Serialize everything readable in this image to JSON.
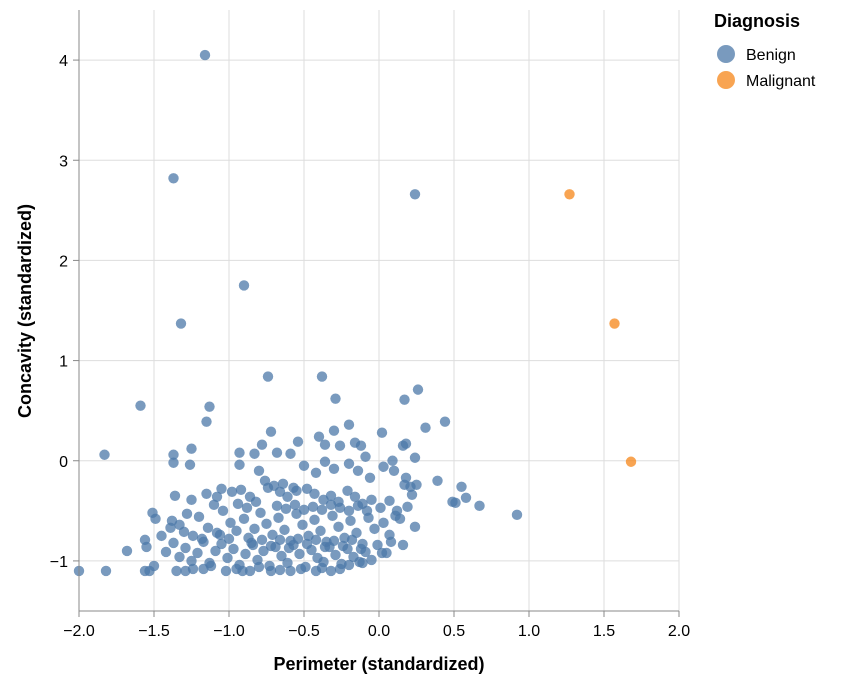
{
  "chart_data": {
    "type": "scatter",
    "xlabel": "Perimeter (standardized)",
    "ylabel": "Concavity (standardized)",
    "xlim": [
      -2.0,
      2.0
    ],
    "ylim": [
      -1.5,
      4.5
    ],
    "x_ticks": [
      -2.0,
      -1.5,
      -1.0,
      -0.5,
      0.0,
      0.5,
      1.0,
      1.5,
      2.0
    ],
    "x_tick_labels": [
      "−2.0",
      "−1.5",
      "−1.0",
      "−0.5",
      "0.0",
      "0.5",
      "1.0",
      "1.5",
      "2.0"
    ],
    "y_ticks": [
      -1,
      0,
      1,
      2,
      3,
      4
    ],
    "y_tick_labels": [
      "−1",
      "0",
      "1",
      "2",
      "3",
      "4"
    ],
    "grid": true,
    "legend": {
      "title": "Diagnosis",
      "position": "top-right"
    },
    "series": [
      {
        "name": "Benign",
        "color": "#4c78a8",
        "points": [
          [
            -1.16,
            4.05
          ],
          [
            -1.37,
            2.82
          ],
          [
            0.24,
            2.66
          ],
          [
            -0.9,
            1.75
          ],
          [
            -1.32,
            1.37
          ],
          [
            -0.74,
            0.84
          ],
          [
            -0.38,
            0.84
          ],
          [
            -0.29,
            0.62
          ],
          [
            0.26,
            0.71
          ],
          [
            0.17,
            0.61
          ],
          [
            -1.59,
            0.55
          ],
          [
            -1.13,
            0.54
          ],
          [
            -1.15,
            0.39
          ],
          [
            0.44,
            0.39
          ],
          [
            0.31,
            0.33
          ],
          [
            -1.83,
            0.06
          ],
          [
            -1.37,
            0.06
          ],
          [
            -1.37,
            -0.02
          ],
          [
            -1.25,
            0.12
          ],
          [
            -1.26,
            -0.04
          ],
          [
            -0.72,
            0.29
          ],
          [
            -0.54,
            0.19
          ],
          [
            -0.4,
            0.24
          ],
          [
            -0.3,
            0.3
          ],
          [
            -0.2,
            0.36
          ],
          [
            -0.16,
            0.18
          ],
          [
            0.02,
            0.28
          ],
          [
            0.16,
            0.15
          ],
          [
            0.18,
            0.17
          ],
          [
            0.09,
            0.0
          ],
          [
            -0.93,
            0.08
          ],
          [
            -0.78,
            0.16
          ],
          [
            -0.83,
            0.07
          ],
          [
            -0.68,
            0.08
          ],
          [
            -0.59,
            0.07
          ],
          [
            -0.36,
            0.16
          ],
          [
            -0.26,
            0.15
          ],
          [
            -0.12,
            0.15
          ],
          [
            -0.09,
            0.04
          ],
          [
            0.24,
            0.03
          ],
          [
            -0.93,
            -0.04
          ],
          [
            -0.8,
            -0.1
          ],
          [
            -0.76,
            -0.2
          ],
          [
            -0.64,
            -0.23
          ],
          [
            -0.57,
            -0.27
          ],
          [
            -0.5,
            -0.05
          ],
          [
            -0.42,
            -0.12
          ],
          [
            -0.36,
            -0.01
          ],
          [
            -0.3,
            -0.08
          ],
          [
            -0.2,
            -0.03
          ],
          [
            -0.14,
            -0.1
          ],
          [
            -0.06,
            -0.17
          ],
          [
            0.03,
            -0.06
          ],
          [
            0.1,
            -0.1
          ],
          [
            0.18,
            -0.17
          ],
          [
            0.25,
            -0.24
          ],
          [
            0.39,
            -0.2
          ],
          [
            0.55,
            -0.26
          ],
          [
            0.58,
            -0.37
          ],
          [
            0.67,
            -0.45
          ],
          [
            0.92,
            -0.54
          ],
          [
            0.49,
            -0.41
          ],
          [
            0.51,
            -0.42
          ],
          [
            0.21,
            -0.26
          ],
          [
            0.17,
            -0.24
          ],
          [
            -1.36,
            -0.35
          ],
          [
            -1.25,
            -0.39
          ],
          [
            -1.15,
            -0.33
          ],
          [
            -1.08,
            -0.36
          ],
          [
            -1.05,
            -0.28
          ],
          [
            -0.98,
            -0.31
          ],
          [
            -0.92,
            -0.29
          ],
          [
            -0.86,
            -0.36
          ],
          [
            -0.82,
            -0.41
          ],
          [
            -0.74,
            -0.27
          ],
          [
            -0.7,
            -0.25
          ],
          [
            -0.66,
            -0.31
          ],
          [
            -0.61,
            -0.36
          ],
          [
            -0.55,
            -0.3
          ],
          [
            -0.48,
            -0.28
          ],
          [
            -0.43,
            -0.33
          ],
          [
            -0.37,
            -0.39
          ],
          [
            -0.32,
            -0.35
          ],
          [
            -0.27,
            -0.41
          ],
          [
            -0.21,
            -0.3
          ],
          [
            -0.16,
            -0.36
          ],
          [
            -0.11,
            -0.43
          ],
          [
            -0.05,
            -0.39
          ],
          [
            0.01,
            -0.47
          ],
          [
            0.07,
            -0.4
          ],
          [
            0.12,
            -0.5
          ],
          [
            0.19,
            -0.46
          ],
          [
            0.22,
            -0.34
          ],
          [
            0.14,
            -0.58
          ],
          [
            0.24,
            -0.66
          ],
          [
            -1.51,
            -0.52
          ],
          [
            -1.49,
            -0.58
          ],
          [
            -1.38,
            -0.6
          ],
          [
            -1.33,
            -0.64
          ],
          [
            -1.28,
            -0.53
          ],
          [
            -1.24,
            -0.75
          ],
          [
            -1.2,
            -0.56
          ],
          [
            -1.14,
            -0.67
          ],
          [
            -1.08,
            -0.72
          ],
          [
            -1.04,
            -0.5
          ],
          [
            -0.99,
            -0.62
          ],
          [
            -0.95,
            -0.7
          ],
          [
            -0.9,
            -0.58
          ],
          [
            -0.87,
            -0.77
          ],
          [
            -0.83,
            -0.68
          ],
          [
            -0.79,
            -0.52
          ],
          [
            -0.75,
            -0.63
          ],
          [
            -0.71,
            -0.74
          ],
          [
            -0.67,
            -0.57
          ],
          [
            -0.63,
            -0.69
          ],
          [
            -0.59,
            -0.8
          ],
          [
            -0.55,
            -0.53
          ],
          [
            -0.51,
            -0.64
          ],
          [
            -0.47,
            -0.75
          ],
          [
            -0.43,
            -0.59
          ],
          [
            -0.39,
            -0.7
          ],
          [
            -0.35,
            -0.81
          ],
          [
            -0.31,
            -0.55
          ],
          [
            -0.27,
            -0.66
          ],
          [
            -0.23,
            -0.77
          ],
          [
            -0.19,
            -0.6
          ],
          [
            -0.15,
            -0.72
          ],
          [
            -0.11,
            -0.83
          ],
          [
            -0.07,
            -0.57
          ],
          [
            -0.03,
            -0.68
          ],
          [
            0.03,
            -0.62
          ],
          [
            0.07,
            -0.74
          ],
          [
            0.11,
            -0.55
          ],
          [
            0.16,
            -0.84
          ],
          [
            0.05,
            -0.92
          ],
          [
            -1.56,
            -0.79
          ],
          [
            -1.55,
            -0.86
          ],
          [
            -1.45,
            -0.75
          ],
          [
            -1.42,
            -0.91
          ],
          [
            -1.37,
            -0.82
          ],
          [
            -1.33,
            -0.96
          ],
          [
            -1.29,
            -0.87
          ],
          [
            -1.25,
            -1.0
          ],
          [
            -1.21,
            -0.92
          ],
          [
            -1.17,
            -0.81
          ],
          [
            -1.13,
            -1.02
          ],
          [
            -1.09,
            -0.9
          ],
          [
            -1.05,
            -0.83
          ],
          [
            -1.01,
            -0.97
          ],
          [
            -0.97,
            -0.88
          ],
          [
            -0.93,
            -1.04
          ],
          [
            -0.89,
            -0.93
          ],
          [
            -0.85,
            -0.82
          ],
          [
            -0.81,
            -0.99
          ],
          [
            -0.77,
            -0.9
          ],
          [
            -0.73,
            -1.05
          ],
          [
            -0.69,
            -0.86
          ],
          [
            -0.65,
            -0.95
          ],
          [
            -0.61,
            -1.02
          ],
          [
            -0.57,
            -0.84
          ],
          [
            -0.53,
            -0.93
          ],
          [
            -0.49,
            -1.06
          ],
          [
            -0.45,
            -0.89
          ],
          [
            -0.41,
            -0.97
          ],
          [
            -0.37,
            -1.01
          ],
          [
            -0.33,
            -0.86
          ],
          [
            -0.29,
            -0.94
          ],
          [
            -0.25,
            -1.03
          ],
          [
            -0.21,
            -0.88
          ],
          [
            -0.17,
            -0.96
          ],
          [
            -0.13,
            -1.01
          ],
          [
            -0.09,
            -0.91
          ],
          [
            -0.05,
            -0.99
          ],
          [
            0.02,
            -0.92
          ],
          [
            -0.01,
            -0.84
          ],
          [
            -1.68,
            -0.9
          ],
          [
            -1.56,
            -1.1
          ],
          [
            -1.53,
            -1.1
          ],
          [
            -1.5,
            -1.05
          ],
          [
            -1.35,
            -1.1
          ],
          [
            -1.29,
            -1.1
          ],
          [
            -1.24,
            -1.08
          ],
          [
            -1.17,
            -1.08
          ],
          [
            -1.12,
            -1.05
          ],
          [
            -1.02,
            -1.1
          ],
          [
            -0.95,
            -1.08
          ],
          [
            -0.86,
            -1.1
          ],
          [
            -0.8,
            -1.06
          ],
          [
            -0.72,
            -1.1
          ],
          [
            -0.66,
            -1.09
          ],
          [
            -0.59,
            -1.1
          ],
          [
            -0.52,
            -1.08
          ],
          [
            -0.42,
            -1.1
          ],
          [
            -0.38,
            -1.07
          ],
          [
            -0.32,
            -1.1
          ],
          [
            -0.26,
            -1.08
          ],
          [
            -0.2,
            -1.04
          ],
          [
            -2.0,
            -1.1
          ],
          [
            -1.82,
            -1.1
          ],
          [
            -0.91,
            -1.1
          ],
          [
            -0.11,
            -1.02
          ],
          [
            -0.68,
            -0.45
          ],
          [
            -0.62,
            -0.48
          ],
          [
            -0.56,
            -0.44
          ],
          [
            -0.5,
            -0.49
          ],
          [
            -0.44,
            -0.46
          ],
          [
            -0.38,
            -0.49
          ],
          [
            -0.32,
            -0.44
          ],
          [
            -0.26,
            -0.47
          ],
          [
            -0.2,
            -0.5
          ],
          [
            -0.14,
            -0.45
          ],
          [
            -0.08,
            -0.5
          ],
          [
            -0.88,
            -0.47
          ],
          [
            -0.94,
            -0.43
          ],
          [
            -1.1,
            -0.44
          ],
          [
            -0.84,
            -0.84
          ],
          [
            -0.78,
            -0.79
          ],
          [
            -0.72,
            -0.85
          ],
          [
            -0.66,
            -0.79
          ],
          [
            -0.6,
            -0.87
          ],
          [
            -0.54,
            -0.78
          ],
          [
            -0.48,
            -0.83
          ],
          [
            -0.42,
            -0.79
          ],
          [
            -0.36,
            -0.86
          ],
          [
            -0.3,
            -0.8
          ],
          [
            -0.24,
            -0.85
          ],
          [
            -0.18,
            -0.79
          ],
          [
            -0.12,
            -0.88
          ],
          [
            -1.39,
            -0.67
          ],
          [
            -1.3,
            -0.71
          ],
          [
            -1.18,
            -0.78
          ],
          [
            -1.06,
            -0.74
          ],
          [
            -1.0,
            -0.78
          ],
          [
            0.08,
            -0.81
          ]
        ]
      },
      {
        "name": "Malignant",
        "color": "#f58518",
        "points": [
          [
            1.27,
            2.66
          ],
          [
            1.57,
            1.37
          ],
          [
            1.68,
            -0.01
          ]
        ]
      }
    ]
  }
}
